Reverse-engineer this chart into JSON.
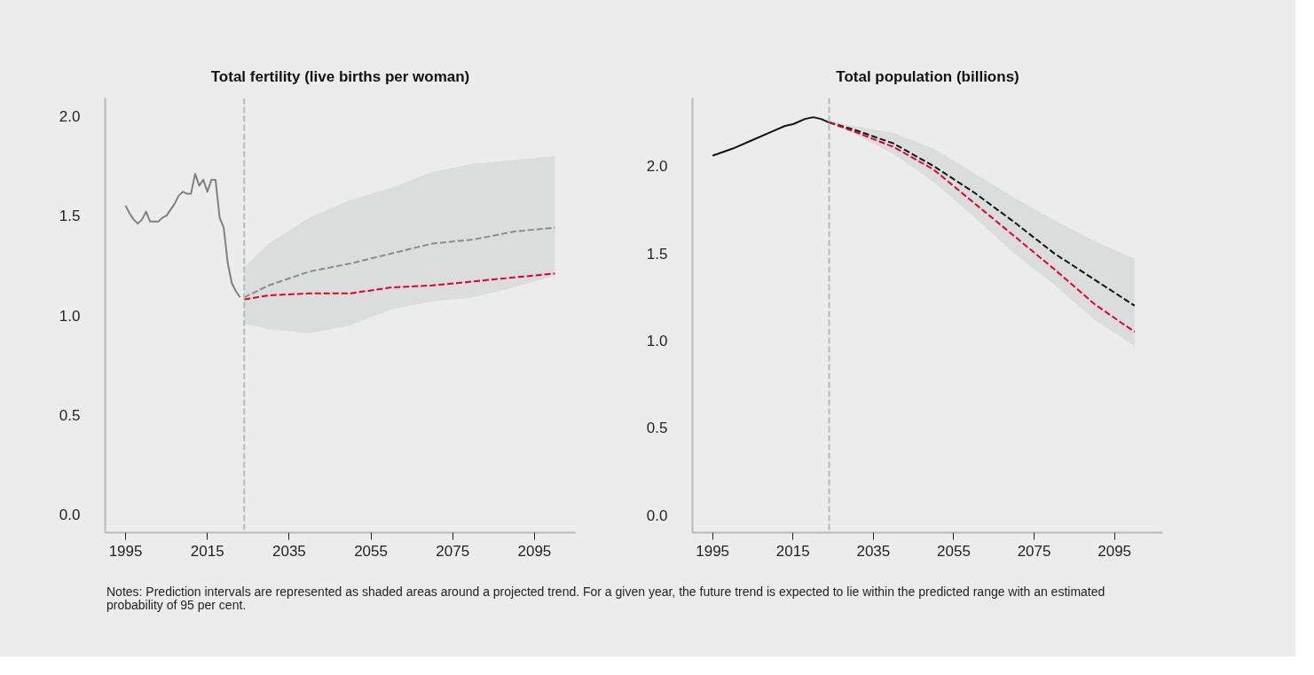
{
  "chart_data": [
    {
      "type": "line",
      "title": "Total fertility (live births per woman)",
      "xlim": [
        1990,
        2105
      ],
      "ylim": [
        -0.09,
        2.09
      ],
      "xticks": [
        1995,
        2015,
        2035,
        2055,
        2075,
        2095
      ],
      "yticks": [
        {
          "value": 0,
          "label": "0.0"
        },
        {
          "value": 0.5,
          "label": "0.5"
        },
        {
          "value": 1,
          "label": "1.0"
        },
        {
          "value": 1.5,
          "label": "1.5"
        },
        {
          "value": 2,
          "label": "2.0"
        }
      ],
      "grid": false,
      "series": [
        {
          "color": "#8a8c8c",
          "line_style": "dashed",
          "x": [
            2024,
            2030,
            2040,
            2050,
            2060,
            2070,
            2080,
            2090,
            2100
          ],
          "values": [
            1.09,
            1.15,
            1.22,
            1.26,
            1.31,
            1.36,
            1.38,
            1.42,
            1.44
          ],
          "lower": [
            0.96,
            0.93,
            0.91,
            0.95,
            1.03,
            1.07,
            1.09,
            1.14,
            1.2
          ],
          "upper": [
            1.24,
            1.36,
            1.49,
            1.58,
            1.64,
            1.72,
            1.76,
            1.78,
            1.8
          ]
        },
        {
          "color": "#e4002b",
          "line_style": "dashed",
          "x": [
            2024,
            2030,
            2040,
            2050,
            2060,
            2070,
            2080,
            2090,
            2100
          ],
          "values": [
            1.08,
            1.1,
            1.11,
            1.11,
            1.14,
            1.15,
            1.17,
            1.19,
            1.21
          ]
        },
        {
          "color": "#808080",
          "line_style": "solid",
          "x": [
            1995,
            1996,
            1997,
            1998,
            1999,
            2000,
            2001,
            2002,
            2003,
            2004,
            2005,
            2006,
            2007,
            2008,
            2009,
            2010,
            2011,
            2012,
            2013,
            2014,
            2015,
            2016,
            2017,
            2018,
            2019,
            2020,
            2021,
            2022,
            2023
          ],
          "values": [
            1.55,
            1.51,
            1.48,
            1.46,
            1.48,
            1.52,
            1.47,
            1.47,
            1.47,
            1.49,
            1.5,
            1.53,
            1.56,
            1.6,
            1.62,
            1.61,
            1.61,
            1.71,
            1.65,
            1.68,
            1.62,
            1.68,
            1.68,
            1.49,
            1.44,
            1.26,
            1.16,
            1.12,
            1.09
          ]
        }
      ],
      "ref_lines": [
        {
          "axis": "x",
          "value": 2024,
          "color": "#b4bcb8",
          "line_style": "dashed"
        }
      ]
    },
    {
      "type": "line",
      "title": "Total population (billions)",
      "xlim": [
        1990,
        2107
      ],
      "ylim": [
        -0.1,
        2.39
      ],
      "xticks": [
        1995,
        2015,
        2035,
        2055,
        2075,
        2095
      ],
      "yticks": [
        {
          "value": 0,
          "label": "0.0"
        },
        {
          "value": 0.5,
          "label": "0.5"
        },
        {
          "value": 1,
          "label": "1.0"
        },
        {
          "value": 1.5,
          "label": "1.5"
        },
        {
          "value": 2,
          "label": "2.0"
        }
      ],
      "grid": false,
      "series": [
        {
          "color": "#111111",
          "line_style": "dashed",
          "x": [
            2024,
            2030,
            2040,
            2050,
            2060,
            2070,
            2080,
            2090,
            2100
          ],
          "values": [
            2.25,
            2.21,
            2.13,
            2.0,
            1.85,
            1.68,
            1.5,
            1.35,
            1.2
          ],
          "lower": [
            2.25,
            2.19,
            2.07,
            1.91,
            1.71,
            1.5,
            1.32,
            1.12,
            0.97
          ],
          "upper": [
            2.26,
            2.23,
            2.19,
            2.1,
            1.96,
            1.82,
            1.69,
            1.57,
            1.47
          ]
        },
        {
          "color": "#e4002b",
          "line_style": "dashed",
          "x": [
            2024,
            2030,
            2040,
            2050,
            2060,
            2070,
            2080,
            2090,
            2100
          ],
          "values": [
            2.25,
            2.2,
            2.11,
            1.98,
            1.79,
            1.6,
            1.41,
            1.21,
            1.05
          ]
        },
        {
          "color": "#111111",
          "line_style": "solid",
          "x": [
            1995,
            2000,
            2005,
            2010,
            2013,
            2015,
            2018,
            2020,
            2022,
            2024
          ],
          "values": [
            2.06,
            2.1,
            2.15,
            2.2,
            2.23,
            2.24,
            2.27,
            2.28,
            2.27,
            2.25
          ]
        }
      ],
      "ref_lines": [
        {
          "axis": "x",
          "value": 2024,
          "color": "#b4bcb8",
          "line_style": "dashed"
        }
      ],
      "annotations": [
        "Notes: Prediction intervals are represented as shaded areas around a projected trend. For a given year, the future trend is expected to lie within the predicted range with an estimated probability of 95 per cent."
      ]
    }
  ]
}
